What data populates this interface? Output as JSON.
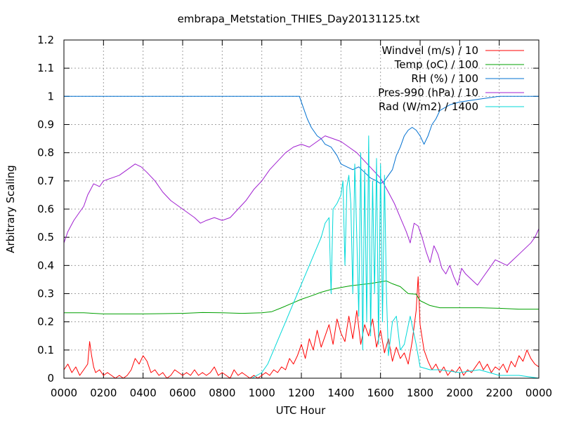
{
  "chart_data": {
    "type": "line",
    "title": "embrapa_Metstation_THIES_Day20131125.txt",
    "xlabel": "UTC Hour",
    "ylabel": "Arbitrary Scaling",
    "xlim": [
      0,
      24
    ],
    "ylim": [
      0,
      1.2
    ],
    "grid": true,
    "legend_position": "top-right",
    "x_ticks": [
      0,
      2,
      4,
      6,
      8,
      10,
      12,
      14,
      16,
      18,
      20,
      22,
      24
    ],
    "x_tick_labels": [
      "0000",
      "0200",
      "0400",
      "0600",
      "0800",
      "1000",
      "1200",
      "1400",
      "1600",
      "1800",
      "2000",
      "2200",
      "0000"
    ],
    "y_ticks": [
      0,
      0.1,
      0.2,
      0.3,
      0.4,
      0.5,
      0.6,
      0.7,
      0.8,
      0.9,
      1,
      1.1,
      1.2
    ],
    "y_tick_labels": [
      "0",
      "0.1",
      "0.2",
      "0.3",
      "0.4",
      "0.5",
      "0.6",
      "0.7",
      "0.8",
      "0.9",
      "1",
      "1.1",
      "1.2"
    ],
    "series": [
      {
        "name": "Windvel (m/s) / 10",
        "color": "#ff0000",
        "x": [
          0,
          0.2,
          0.4,
          0.6,
          0.8,
          1.0,
          1.2,
          1.3,
          1.4,
          1.5,
          1.6,
          1.8,
          2.0,
          2.2,
          2.4,
          2.6,
          2.8,
          3.0,
          3.2,
          3.4,
          3.6,
          3.8,
          4.0,
          4.2,
          4.4,
          4.6,
          4.8,
          5.0,
          5.2,
          5.4,
          5.6,
          5.8,
          6.0,
          6.2,
          6.4,
          6.6,
          6.8,
          7.0,
          7.2,
          7.4,
          7.6,
          7.8,
          8.0,
          8.2,
          8.4,
          8.6,
          8.8,
          9.0,
          9.2,
          9.4,
          9.6,
          9.8,
          10.0,
          10.2,
          10.4,
          10.6,
          10.8,
          11.0,
          11.2,
          11.4,
          11.6,
          11.8,
          12.0,
          12.2,
          12.4,
          12.6,
          12.8,
          13.0,
          13.2,
          13.4,
          13.6,
          13.8,
          14.0,
          14.2,
          14.4,
          14.6,
          14.8,
          15.0,
          15.2,
          15.4,
          15.6,
          15.8,
          16.0,
          16.2,
          16.4,
          16.6,
          16.8,
          17.0,
          17.2,
          17.4,
          17.6,
          17.8,
          17.9,
          18.0,
          18.2,
          18.4,
          18.6,
          18.8,
          19.0,
          19.2,
          19.4,
          19.6,
          19.8,
          20.0,
          20.2,
          20.4,
          20.6,
          20.8,
          21.0,
          21.2,
          21.4,
          21.6,
          21.8,
          22.0,
          22.2,
          22.4,
          22.6,
          22.8,
          23.0,
          23.2,
          23.4,
          23.6,
          23.8,
          24.0
        ],
        "values": [
          0.03,
          0.05,
          0.02,
          0.04,
          0.01,
          0.03,
          0.05,
          0.13,
          0.08,
          0.04,
          0.02,
          0.03,
          0.01,
          0.02,
          0.01,
          0.0,
          0.01,
          0.0,
          0.01,
          0.03,
          0.07,
          0.05,
          0.08,
          0.06,
          0.02,
          0.03,
          0.01,
          0.02,
          0.0,
          0.01,
          0.03,
          0.02,
          0.01,
          0.02,
          0.01,
          0.03,
          0.01,
          0.02,
          0.01,
          0.02,
          0.04,
          0.01,
          0.02,
          0.01,
          0.0,
          0.03,
          0.01,
          0.02,
          0.01,
          0.0,
          0.01,
          0.0,
          0.01,
          0.02,
          0.01,
          0.03,
          0.02,
          0.04,
          0.03,
          0.07,
          0.05,
          0.08,
          0.12,
          0.07,
          0.14,
          0.1,
          0.17,
          0.11,
          0.15,
          0.19,
          0.12,
          0.21,
          0.16,
          0.13,
          0.22,
          0.14,
          0.24,
          0.12,
          0.19,
          0.15,
          0.21,
          0.11,
          0.17,
          0.09,
          0.14,
          0.06,
          0.11,
          0.07,
          0.09,
          0.05,
          0.13,
          0.24,
          0.36,
          0.19,
          0.1,
          0.06,
          0.03,
          0.05,
          0.02,
          0.04,
          0.01,
          0.03,
          0.02,
          0.04,
          0.01,
          0.03,
          0.02,
          0.04,
          0.06,
          0.03,
          0.05,
          0.02,
          0.04,
          0.03,
          0.05,
          0.02,
          0.06,
          0.04,
          0.08,
          0.06,
          0.1,
          0.07,
          0.05,
          0.04
        ]
      },
      {
        "name": "Temp (oC) / 100",
        "color": "#00a000",
        "x": [
          0,
          1,
          2,
          3,
          4,
          5,
          6,
          7,
          8,
          9,
          10,
          10.5,
          11,
          11.5,
          12,
          12.5,
          13,
          13.5,
          14,
          14.5,
          15,
          15.5,
          16,
          16.3,
          16.6,
          17,
          17.4,
          17.8,
          18,
          18.5,
          19,
          20,
          21,
          22,
          23,
          24
        ],
        "values": [
          0.232,
          0.232,
          0.228,
          0.228,
          0.228,
          0.229,
          0.23,
          0.233,
          0.232,
          0.23,
          0.232,
          0.236,
          0.25,
          0.265,
          0.28,
          0.292,
          0.305,
          0.315,
          0.322,
          0.328,
          0.332,
          0.336,
          0.342,
          0.345,
          0.335,
          0.325,
          0.3,
          0.298,
          0.275,
          0.258,
          0.25,
          0.25,
          0.25,
          0.248,
          0.245,
          0.245
        ]
      },
      {
        "name": "RH (%) / 100",
        "color": "#0070d0",
        "x": [
          0,
          2,
          4,
          6,
          8,
          10,
          11,
          11.9,
          12.1,
          12.3,
          12.5,
          12.8,
          13.0,
          13.2,
          13.5,
          13.8,
          14.0,
          14.3,
          14.6,
          14.9,
          15.2,
          15.5,
          15.8,
          16.0,
          16.2,
          16.4,
          16.6,
          16.8,
          17.0,
          17.2,
          17.4,
          17.6,
          17.8,
          18.0,
          18.2,
          18.4,
          18.6,
          18.8,
          19.0,
          19.5,
          20,
          21,
          22,
          23,
          24
        ],
        "values": [
          1.0,
          1.0,
          1.0,
          1.0,
          1.0,
          1.0,
          1.0,
          1.0,
          0.96,
          0.92,
          0.89,
          0.86,
          0.85,
          0.83,
          0.82,
          0.79,
          0.76,
          0.75,
          0.74,
          0.75,
          0.73,
          0.71,
          0.7,
          0.69,
          0.7,
          0.72,
          0.74,
          0.79,
          0.82,
          0.86,
          0.88,
          0.89,
          0.88,
          0.86,
          0.83,
          0.86,
          0.9,
          0.92,
          0.95,
          0.97,
          0.98,
          0.99,
          1.0,
          1.0,
          1.0
        ]
      },
      {
        "name": "Pres-990 (hPa) / 10",
        "color": "#a020d0",
        "x": [
          0,
          0.2,
          0.5,
          0.8,
          1.0,
          1.2,
          1.5,
          1.8,
          2.0,
          2.4,
          2.8,
          3.2,
          3.6,
          3.9,
          4.2,
          4.6,
          5.0,
          5.4,
          5.8,
          6.2,
          6.6,
          6.9,
          7.2,
          7.6,
          8.0,
          8.4,
          8.8,
          9.2,
          9.6,
          10.0,
          10.4,
          10.8,
          11.2,
          11.6,
          12.0,
          12.4,
          12.8,
          13.2,
          13.6,
          14.0,
          14.4,
          14.8,
          15.2,
          15.6,
          16.0,
          16.4,
          16.7,
          17.0,
          17.3,
          17.5,
          17.7,
          17.9,
          18.1,
          18.3,
          18.5,
          18.7,
          18.9,
          19.1,
          19.3,
          19.5,
          19.7,
          19.9,
          20.1,
          20.3,
          20.6,
          20.9,
          21.2,
          21.5,
          21.8,
          22.1,
          22.4,
          22.7,
          23.0,
          23.3,
          23.6,
          23.8,
          24.0
        ],
        "values": [
          0.48,
          0.52,
          0.56,
          0.59,
          0.61,
          0.65,
          0.69,
          0.68,
          0.7,
          0.71,
          0.72,
          0.74,
          0.76,
          0.75,
          0.73,
          0.7,
          0.66,
          0.63,
          0.61,
          0.59,
          0.57,
          0.55,
          0.56,
          0.57,
          0.56,
          0.57,
          0.6,
          0.63,
          0.67,
          0.7,
          0.74,
          0.77,
          0.8,
          0.82,
          0.83,
          0.82,
          0.84,
          0.86,
          0.85,
          0.84,
          0.82,
          0.8,
          0.77,
          0.74,
          0.71,
          0.66,
          0.62,
          0.57,
          0.52,
          0.48,
          0.55,
          0.54,
          0.5,
          0.45,
          0.41,
          0.47,
          0.44,
          0.39,
          0.37,
          0.4,
          0.36,
          0.33,
          0.39,
          0.37,
          0.35,
          0.33,
          0.36,
          0.39,
          0.42,
          0.41,
          0.4,
          0.42,
          0.44,
          0.46,
          0.48,
          0.5,
          0.53
        ]
      },
      {
        "name": "Rad (W/m2) / 1400",
        "color": "#00d8d8",
        "x": [
          0,
          2,
          4,
          6,
          8,
          9.5,
          10.0,
          10.3,
          10.6,
          10.9,
          11.2,
          11.5,
          11.8,
          12.1,
          12.4,
          12.7,
          13.0,
          13.2,
          13.4,
          13.5,
          13.6,
          13.8,
          14.0,
          14.1,
          14.2,
          14.3,
          14.4,
          14.5,
          14.6,
          14.7,
          14.8,
          14.9,
          15.0,
          15.1,
          15.2,
          15.3,
          15.4,
          15.5,
          15.6,
          15.7,
          15.8,
          15.9,
          16.0,
          16.1,
          16.2,
          16.3,
          16.4,
          16.6,
          16.8,
          17.0,
          17.2,
          17.5,
          17.8,
          18.0,
          18.5,
          19.0,
          20.0,
          21.0,
          22.0,
          23.0,
          24.0
        ],
        "values": [
          0.0,
          0.0,
          0.0,
          0.0,
          0.0,
          0.0,
          0.02,
          0.05,
          0.1,
          0.15,
          0.2,
          0.25,
          0.3,
          0.35,
          0.4,
          0.45,
          0.5,
          0.55,
          0.57,
          0.3,
          0.6,
          0.62,
          0.65,
          0.7,
          0.4,
          0.68,
          0.72,
          0.62,
          0.3,
          0.76,
          0.5,
          0.22,
          0.8,
          0.1,
          0.74,
          0.2,
          0.86,
          0.15,
          0.7,
          0.3,
          0.78,
          0.12,
          0.76,
          0.2,
          0.72,
          0.3,
          0.08,
          0.2,
          0.22,
          0.1,
          0.12,
          0.22,
          0.12,
          0.04,
          0.03,
          0.03,
          0.02,
          0.03,
          0.01,
          0.01,
          0.0
        ]
      }
    ]
  }
}
